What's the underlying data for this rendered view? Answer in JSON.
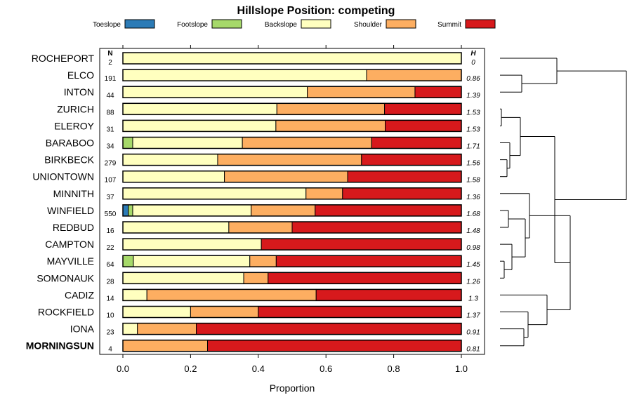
{
  "chart_data": {
    "type": "bar",
    "orientation": "horizontal-stacked",
    "title": "Hillslope Position: competing",
    "xlabel": "Proportion",
    "xlim": [
      0,
      1
    ],
    "xticks": [
      "0.0",
      "0.2",
      "0.4",
      "0.6",
      "0.8",
      "1.0"
    ],
    "n_header": "N",
    "h_header": "H",
    "legend": [
      {
        "name": "Toeslope",
        "color": "#2C7BB6"
      },
      {
        "name": "Footslope",
        "color": "#A6D96A"
      },
      {
        "name": "Backslope",
        "color": "#FFFFBF"
      },
      {
        "name": "Shoulder",
        "color": "#FDAE61"
      },
      {
        "name": "Summit",
        "color": "#D7191C"
      }
    ],
    "rows": [
      {
        "name": "ROCHEPORT",
        "n": "2",
        "h": "0",
        "values": [
          0,
          0,
          1.0,
          0,
          0
        ]
      },
      {
        "name": "ELCO",
        "n": "191",
        "h": "0.86",
        "values": [
          0,
          0,
          0.72,
          0.28,
          0
        ]
      },
      {
        "name": "INTON",
        "n": "44",
        "h": "1.39",
        "values": [
          0,
          0,
          0.545,
          0.318,
          0.137
        ]
      },
      {
        "name": "ZURICH",
        "n": "88",
        "h": "1.53",
        "values": [
          0,
          0,
          0.455,
          0.318,
          0.227
        ]
      },
      {
        "name": "ELEROY",
        "n": "31",
        "h": "1.53",
        "values": [
          0,
          0,
          0.452,
          0.323,
          0.225
        ]
      },
      {
        "name": "BARABOO",
        "n": "34",
        "h": "1.71",
        "values": [
          0,
          0.029,
          0.324,
          0.382,
          0.265
        ]
      },
      {
        "name": "BIRKBECK",
        "n": "279",
        "h": "1.56",
        "values": [
          0,
          0,
          0.28,
          0.425,
          0.295
        ]
      },
      {
        "name": "UNIONTOWN",
        "n": "107",
        "h": "1.58",
        "values": [
          0,
          0,
          0.3,
          0.364,
          0.336
        ]
      },
      {
        "name": "MINNITH",
        "n": "37",
        "h": "1.36",
        "values": [
          0,
          0,
          0.541,
          0.108,
          0.351
        ]
      },
      {
        "name": "WINFIELD",
        "n": "550",
        "h": "1.68",
        "values": [
          0.016,
          0.013,
          0.35,
          0.189,
          0.432
        ]
      },
      {
        "name": "REDBUD",
        "n": "16",
        "h": "1.48",
        "values": [
          0,
          0,
          0.313,
          0.187,
          0.5
        ]
      },
      {
        "name": "CAMPTON",
        "n": "22",
        "h": "0.98",
        "values": [
          0,
          0,
          0.409,
          0,
          0.591
        ]
      },
      {
        "name": "MAYVILLE",
        "n": "64",
        "h": "1.45",
        "values": [
          0,
          0.031,
          0.344,
          0.078,
          0.547
        ]
      },
      {
        "name": "SOMONAUK",
        "n": "28",
        "h": "1.26",
        "values": [
          0,
          0,
          0.357,
          0.072,
          0.571
        ]
      },
      {
        "name": "CADIZ",
        "n": "14",
        "h": "1.3",
        "values": [
          0,
          0,
          0.071,
          0.5,
          0.429
        ]
      },
      {
        "name": "ROCKFIELD",
        "n": "10",
        "h": "1.37",
        "values": [
          0,
          0,
          0.2,
          0.2,
          0.6
        ]
      },
      {
        "name": "IONA",
        "n": "23",
        "h": "0.91",
        "values": [
          0,
          0,
          0.043,
          0.174,
          0.783
        ]
      },
      {
        "name": "MORNINGSUN",
        "n": "4",
        "h": "0.81",
        "values": [
          0,
          0,
          0,
          0.25,
          0.75
        ],
        "bold": true
      }
    ]
  }
}
